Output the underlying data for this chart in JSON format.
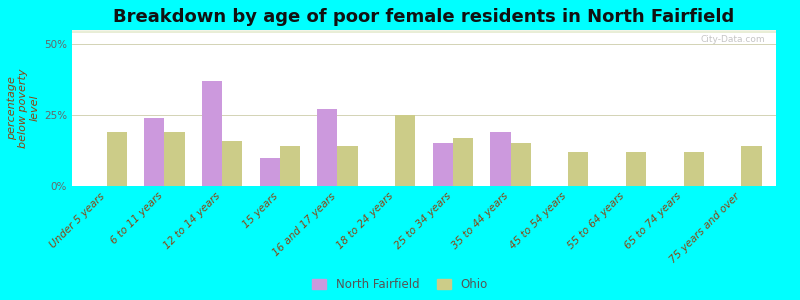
{
  "title": "Breakdown by age of poor female residents in North Fairfield",
  "ylabel": "percentage\nbelow poverty\nlevel",
  "categories": [
    "Under 5 years",
    "6 to 11 years",
    "12 to 14 years",
    "15 years",
    "16 and 17 years",
    "18 to 24 years",
    "25 to 34 years",
    "35 to 44 years",
    "45 to 54 years",
    "55 to 64 years",
    "65 to 74 years",
    "75 years and over"
  ],
  "north_fairfield": [
    0,
    24,
    37,
    10,
    27,
    0,
    15,
    19,
    0,
    0,
    0,
    0
  ],
  "ohio": [
    19,
    19,
    16,
    14,
    14,
    25,
    17,
    15,
    12,
    12,
    12,
    14
  ],
  "nf_color": "#cc99dd",
  "ohio_color": "#cccc88",
  "ylim": [
    0,
    55
  ],
  "yticks": [
    0,
    25,
    50
  ],
  "ytick_labels": [
    "0%",
    "25%",
    "50%"
  ],
  "outer_bg": "#00ffff",
  "title_fontsize": 13,
  "axis_fontsize": 8,
  "tick_fontsize": 7.5,
  "watermark": "City-Data.com"
}
